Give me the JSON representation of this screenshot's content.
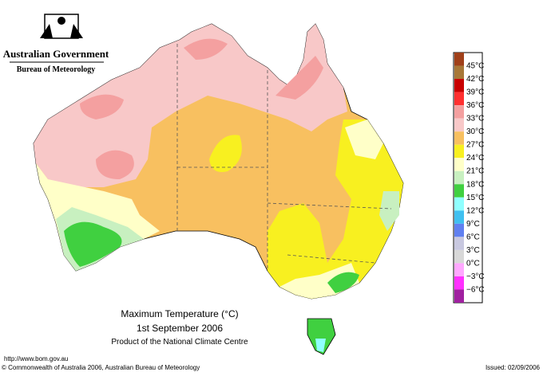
{
  "header": {
    "government": "Australian Government",
    "bureau": "Bureau of Meteorology"
  },
  "title": "Maximum Temperature (°C)",
  "date": "1st September 2006",
  "product": "Product of the National Climate Centre",
  "url": "http://www.bom.gov.au",
  "copyright": "© Commonwealth of Australia 2006, Australian Bureau of Meteorology",
  "issued": "Issued: 02/09/2006",
  "legend": {
    "colors": [
      "#a0401a",
      "#a87838",
      "#c80000",
      "#ff3030",
      "#f4a0a0",
      "#f8c8c8",
      "#f8c060",
      "#f8f020",
      "#ffffc8",
      "#c8f0c0",
      "#40d040",
      "#90ffff",
      "#40c0f0",
      "#6080f0",
      "#c8c8e0",
      "#d8d8d8",
      "#ffa8ff",
      "#ff30ff",
      "#a020a0"
    ],
    "labels": [
      "45°C",
      "42°C",
      "39°C",
      "36°C",
      "33°C",
      "30°C",
      "27°C",
      "24°C",
      "21°C",
      "18°C",
      "15°C",
      "12°C",
      "9°C",
      "6°C",
      "3°C",
      "0°C",
      "−3°C",
      "−6°C"
    ]
  }
}
